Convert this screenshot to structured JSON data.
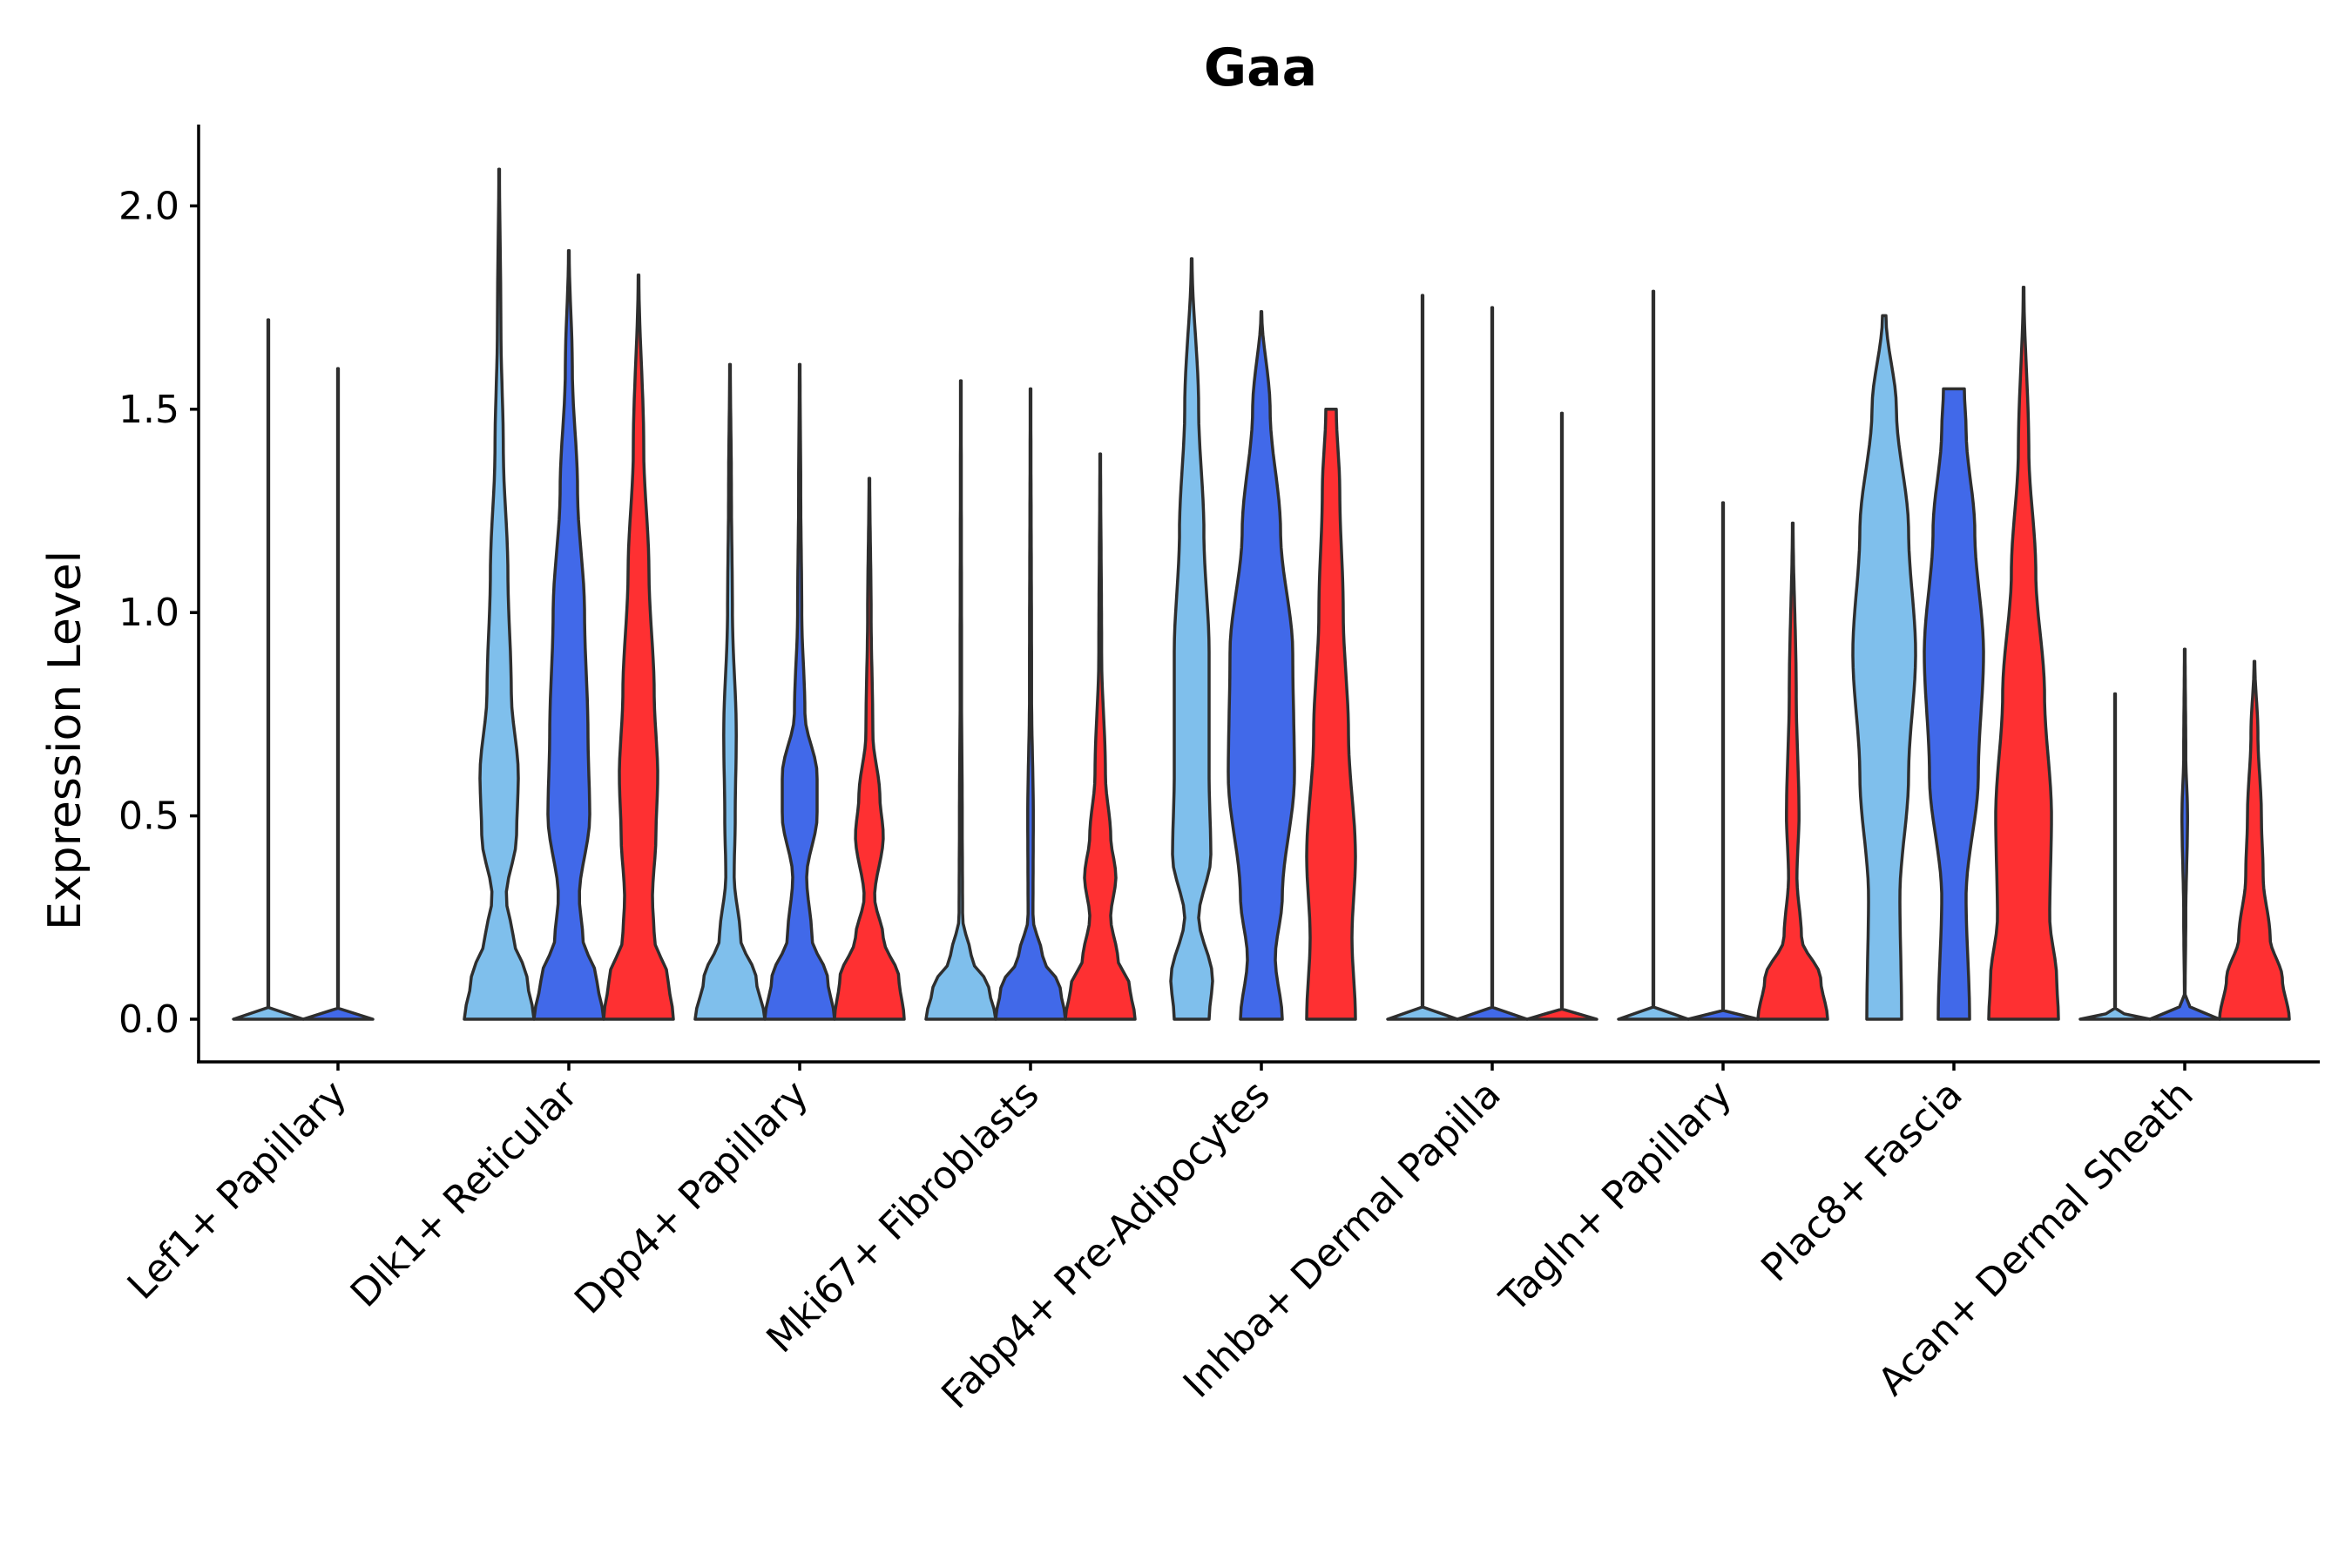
{
  "chart_data": {
    "type": "violin",
    "title": "Gaa",
    "xlabel": "",
    "ylabel": "Expression Level",
    "ylim": [
      -0.105,
      2.2
    ],
    "yticks": [
      0.0,
      0.5,
      1.0,
      1.5,
      2.0
    ],
    "ytick_labels": [
      "0.0",
      "0.5",
      "1.0",
      "1.5",
      "2.0"
    ],
    "series_colors": [
      "#7fbfec",
      "#4169e9",
      "#fe3032"
    ],
    "categories": [
      "Lef1+ Papillary",
      "Dlk1+ Reticular",
      "Dpp4+ Papillary",
      "Mki67+ Fibroblasts",
      "Fabp4+ Pre-Adipocytes",
      "Inhba+ Dermal Papilla",
      "Tagln+ Papillary",
      "Plac8+ Fascia",
      "Acan+ Dermal Sheath"
    ],
    "violins": [
      {
        "category": 0,
        "series": 0,
        "max": 1.72,
        "profile": [
          [
            0,
            1
          ],
          [
            0.02,
            0.005
          ],
          [
            0.1,
            0.01
          ],
          [
            1.72,
            0.01
          ]
        ]
      },
      {
        "category": 0,
        "series": 1,
        "max": 1.6,
        "profile": [
          [
            0,
            1
          ],
          [
            0.02,
            0.005
          ],
          [
            0.1,
            0.01
          ],
          [
            1.6,
            0.01
          ]
        ]
      },
      {
        "category": 1,
        "series": 0,
        "max": 2.09,
        "profile": [
          [
            0,
            1
          ],
          [
            0.1,
            0.8
          ],
          [
            0.2,
            0.4
          ],
          [
            0.3,
            0.2
          ],
          [
            0.45,
            0.5
          ],
          [
            0.6,
            0.55
          ],
          [
            0.8,
            0.35
          ],
          [
            1.1,
            0.25
          ],
          [
            1.4,
            0.12
          ],
          [
            1.7,
            0.05
          ],
          [
            2.09,
            0.01
          ]
        ]
      },
      {
        "category": 1,
        "series": 1,
        "max": 1.89,
        "profile": [
          [
            0,
            1
          ],
          [
            0.1,
            0.8
          ],
          [
            0.2,
            0.4
          ],
          [
            0.3,
            0.3
          ],
          [
            0.5,
            0.6
          ],
          [
            0.7,
            0.55
          ],
          [
            1.0,
            0.45
          ],
          [
            1.3,
            0.25
          ],
          [
            1.6,
            0.1
          ],
          [
            1.89,
            0.01
          ]
        ]
      },
      {
        "category": 1,
        "series": 2,
        "max": 1.83,
        "profile": [
          [
            0,
            1
          ],
          [
            0.1,
            0.85
          ],
          [
            0.2,
            0.45
          ],
          [
            0.3,
            0.4
          ],
          [
            0.45,
            0.5
          ],
          [
            0.6,
            0.55
          ],
          [
            0.8,
            0.45
          ],
          [
            1.1,
            0.3
          ],
          [
            1.4,
            0.15
          ],
          [
            1.83,
            0.01
          ]
        ]
      },
      {
        "category": 2,
        "series": 0,
        "max": 1.61,
        "profile": [
          [
            0,
            1
          ],
          [
            0.1,
            0.75
          ],
          [
            0.2,
            0.3
          ],
          [
            0.35,
            0.12
          ],
          [
            0.5,
            0.15
          ],
          [
            0.7,
            0.18
          ],
          [
            1.0,
            0.07
          ],
          [
            1.3,
            0.04
          ],
          [
            1.61,
            0.01
          ]
        ]
      },
      {
        "category": 2,
        "series": 1,
        "max": 1.61,
        "profile": [
          [
            0,
            1
          ],
          [
            0.1,
            0.8
          ],
          [
            0.2,
            0.35
          ],
          [
            0.35,
            0.2
          ],
          [
            0.5,
            0.5
          ],
          [
            0.6,
            0.5
          ],
          [
            0.75,
            0.15
          ],
          [
            1.0,
            0.06
          ],
          [
            1.3,
            0.03
          ],
          [
            1.61,
            0.01
          ]
        ]
      },
      {
        "category": 2,
        "series": 2,
        "max": 1.33,
        "profile": [
          [
            0,
            1
          ],
          [
            0.1,
            0.85
          ],
          [
            0.2,
            0.4
          ],
          [
            0.3,
            0.15
          ],
          [
            0.45,
            0.4
          ],
          [
            0.55,
            0.3
          ],
          [
            0.7,
            0.1
          ],
          [
            1.0,
            0.05
          ],
          [
            1.33,
            0.01
          ]
        ]
      },
      {
        "category": 3,
        "series": 0,
        "max": 1.57,
        "profile": [
          [
            0,
            1
          ],
          [
            0.08,
            0.8
          ],
          [
            0.15,
            0.3
          ],
          [
            0.25,
            0.05
          ],
          [
            0.5,
            0.04
          ],
          [
            0.8,
            0.02
          ],
          [
            1.57,
            0.01
          ]
        ]
      },
      {
        "category": 3,
        "series": 1,
        "max": 1.55,
        "profile": [
          [
            0,
            1
          ],
          [
            0.08,
            0.85
          ],
          [
            0.15,
            0.35
          ],
          [
            0.25,
            0.07
          ],
          [
            0.5,
            0.08
          ],
          [
            0.8,
            0.03
          ],
          [
            1.55,
            0.01
          ]
        ]
      },
      {
        "category": 3,
        "series": 2,
        "max": 1.39,
        "profile": [
          [
            0,
            1
          ],
          [
            0.08,
            0.85
          ],
          [
            0.15,
            0.5
          ],
          [
            0.25,
            0.3
          ],
          [
            0.35,
            0.45
          ],
          [
            0.45,
            0.3
          ],
          [
            0.6,
            0.15
          ],
          [
            0.9,
            0.04
          ],
          [
            1.39,
            0.01
          ]
        ]
      },
      {
        "category": 4,
        "series": 0,
        "max": 1.87,
        "profile": [
          [
            0,
            0.5
          ],
          [
            0.1,
            0.6
          ],
          [
            0.25,
            0.2
          ],
          [
            0.4,
            0.55
          ],
          [
            0.6,
            0.5
          ],
          [
            0.9,
            0.5
          ],
          [
            1.2,
            0.35
          ],
          [
            1.5,
            0.2
          ],
          [
            1.87,
            0.01
          ]
        ]
      },
      {
        "category": 4,
        "series": 1,
        "max": 1.74,
        "profile": [
          [
            0,
            0.6
          ],
          [
            0.15,
            0.4
          ],
          [
            0.3,
            0.6
          ],
          [
            0.6,
            0.95
          ],
          [
            0.9,
            0.9
          ],
          [
            1.2,
            0.55
          ],
          [
            1.5,
            0.25
          ],
          [
            1.74,
            0.01
          ]
        ]
      },
      {
        "category": 4,
        "series": 2,
        "max": 1.5,
        "profile": [
          [
            0,
            0.7
          ],
          [
            0.2,
            0.6
          ],
          [
            0.4,
            0.7
          ],
          [
            0.7,
            0.5
          ],
          [
            1.0,
            0.35
          ],
          [
            1.3,
            0.25
          ],
          [
            1.5,
            0.15
          ]
        ]
      },
      {
        "category": 5,
        "series": 0,
        "max": 1.78,
        "profile": [
          [
            0,
            1
          ],
          [
            0.02,
            0.005
          ],
          [
            0.1,
            0.01
          ],
          [
            1.78,
            0.01
          ]
        ]
      },
      {
        "category": 5,
        "series": 1,
        "max": 1.75,
        "profile": [
          [
            0,
            1
          ],
          [
            0.02,
            0.005
          ],
          [
            0.1,
            0.01
          ],
          [
            1.75,
            0.01
          ]
        ]
      },
      {
        "category": 5,
        "series": 2,
        "max": 1.49,
        "profile": [
          [
            0,
            1
          ],
          [
            0.02,
            0.005
          ],
          [
            0.1,
            0.01
          ],
          [
            1.49,
            0.01
          ]
        ]
      },
      {
        "category": 6,
        "series": 0,
        "max": 1.79,
        "profile": [
          [
            0,
            1
          ],
          [
            0.02,
            0.005
          ],
          [
            0.1,
            0.01
          ],
          [
            1.79,
            0.01
          ]
        ]
      },
      {
        "category": 6,
        "series": 1,
        "max": 1.27,
        "profile": [
          [
            0,
            1
          ],
          [
            0.02,
            0.005
          ],
          [
            0.1,
            0.01
          ],
          [
            1.27,
            0.01
          ]
        ]
      },
      {
        "category": 6,
        "series": 2,
        "max": 1.22,
        "profile": [
          [
            0,
            1
          ],
          [
            0.1,
            0.8
          ],
          [
            0.2,
            0.25
          ],
          [
            0.35,
            0.12
          ],
          [
            0.5,
            0.18
          ],
          [
            0.8,
            0.1
          ],
          [
            1.22,
            0.01
          ]
        ]
      },
      {
        "category": 7,
        "series": 0,
        "max": 1.73,
        "profile": [
          [
            0,
            0.5
          ],
          [
            0.3,
            0.45
          ],
          [
            0.6,
            0.7
          ],
          [
            0.9,
            0.9
          ],
          [
            1.2,
            0.7
          ],
          [
            1.5,
            0.35
          ],
          [
            1.73,
            0.05
          ]
        ]
      },
      {
        "category": 7,
        "series": 1,
        "max": 1.55,
        "profile": [
          [
            0,
            0.45
          ],
          [
            0.3,
            0.35
          ],
          [
            0.6,
            0.7
          ],
          [
            0.9,
            0.85
          ],
          [
            1.2,
            0.6
          ],
          [
            1.45,
            0.35
          ],
          [
            1.55,
            0.3
          ]
        ]
      },
      {
        "category": 7,
        "series": 2,
        "max": 1.8,
        "profile": [
          [
            0,
            1
          ],
          [
            0.1,
            0.95
          ],
          [
            0.25,
            0.75
          ],
          [
            0.5,
            0.8
          ],
          [
            0.8,
            0.6
          ],
          [
            1.1,
            0.35
          ],
          [
            1.4,
            0.15
          ],
          [
            1.8,
            0.01
          ]
        ]
      },
      {
        "category": 8,
        "series": 0,
        "max": 0.8,
        "profile": [
          [
            0,
            1
          ],
          [
            0.02,
            0.005
          ],
          [
            0.1,
            0.01
          ],
          [
            0.8,
            0.01
          ]
        ]
      },
      {
        "category": 8,
        "series": 1,
        "max": 0.91,
        "profile": [
          [
            0,
            1
          ],
          [
            0.03,
            0.15
          ],
          [
            0.06,
            0.01
          ],
          [
            0.25,
            0.03
          ],
          [
            0.5,
            0.08
          ],
          [
            0.65,
            0.03
          ],
          [
            0.91,
            0.01
          ]
        ]
      },
      {
        "category": 8,
        "series": 2,
        "max": 0.88,
        "profile": [
          [
            0,
            1
          ],
          [
            0.1,
            0.8
          ],
          [
            0.2,
            0.45
          ],
          [
            0.35,
            0.25
          ],
          [
            0.5,
            0.2
          ],
          [
            0.7,
            0.1
          ],
          [
            0.88,
            0.01
          ]
        ]
      }
    ]
  }
}
